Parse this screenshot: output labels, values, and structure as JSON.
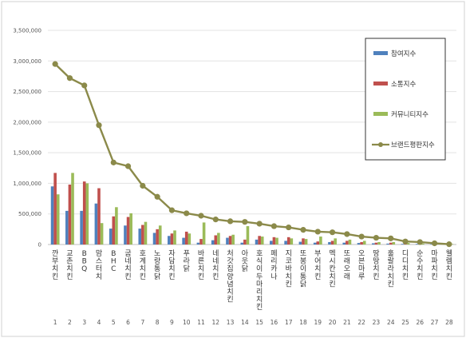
{
  "chart_data": {
    "type": "bar",
    "yticks": [
      "0",
      "500,000",
      "1,000,000",
      "1,500,000",
      "2,000,000",
      "2,500,000",
      "3,000,000",
      "3,500,000"
    ],
    "ylim": [
      0,
      3500000
    ],
    "grid": true,
    "legend_position": "top-right",
    "categories": [
      "깐부치킨",
      "교촌치킨",
      "BBQ",
      "맘스터치",
      "BHC",
      "굽네치킨",
      "호계치킨",
      "노랑통닭",
      "자담치킨",
      "푸라닭",
      "바른치킨",
      "네네치킨",
      "처갓집양념치킨",
      "아웃닭",
      "호식이두마리치킨",
      "페리카나",
      "지코바치킨",
      "또봉이통닭",
      "부어치킨",
      "멕시칸치킨",
      "또래오래",
      "오븐마루",
      "땅땅치킨",
      "훌랄라치킨",
      "디디치킨",
      "순수치킨",
      "마파치킨",
      "웰렘치킨"
    ],
    "ranks": [
      "1",
      "2",
      "3",
      "4",
      "5",
      "6",
      "7",
      "8",
      "9",
      "10",
      "11",
      "12",
      "13",
      "14",
      "15",
      "16",
      "17",
      "18",
      "19",
      "20",
      "21",
      "22",
      "23",
      "24",
      "25",
      "26",
      "27",
      "28"
    ],
    "series": [
      {
        "name": "참여지수",
        "color": "#4F81BD",
        "type": "bar",
        "values": [
          950000,
          550000,
          550000,
          670000,
          260000,
          310000,
          260000,
          190000,
          140000,
          110000,
          30000,
          70000,
          110000,
          30000,
          80000,
          60000,
          60000,
          45000,
          30000,
          40000,
          30000,
          25000,
          20000,
          15000,
          10000,
          10000,
          8000,
          5000
        ]
      },
      {
        "name": "소통지수",
        "color": "#C0504D",
        "type": "bar",
        "values": [
          1170000,
          980000,
          1030000,
          920000,
          460000,
          450000,
          320000,
          250000,
          180000,
          210000,
          90000,
          150000,
          140000,
          80000,
          140000,
          120000,
          120000,
          100000,
          50000,
          60000,
          60000,
          40000,
          30000,
          30000,
          20000,
          20000,
          10000,
          10000
        ]
      },
      {
        "name": "커뮤니티지수",
        "color": "#9BBB59",
        "type": "bar",
        "values": [
          820000,
          1170000,
          1000000,
          350000,
          610000,
          510000,
          370000,
          310000,
          230000,
          180000,
          360000,
          190000,
          160000,
          300000,
          130000,
          110000,
          100000,
          90000,
          130000,
          100000,
          80000,
          60000,
          40000,
          40000,
          25000,
          15000,
          10000,
          8000
        ]
      },
      {
        "name": "브랜드평판지수",
        "color": "#8B8A4A",
        "type": "line",
        "values": [
          2950000,
          2720000,
          2600000,
          1950000,
          1340000,
          1280000,
          960000,
          780000,
          560000,
          510000,
          470000,
          410000,
          380000,
          370000,
          340000,
          300000,
          280000,
          240000,
          210000,
          200000,
          170000,
          130000,
          110000,
          100000,
          50000,
          40000,
          20000,
          5000
        ]
      }
    ]
  }
}
